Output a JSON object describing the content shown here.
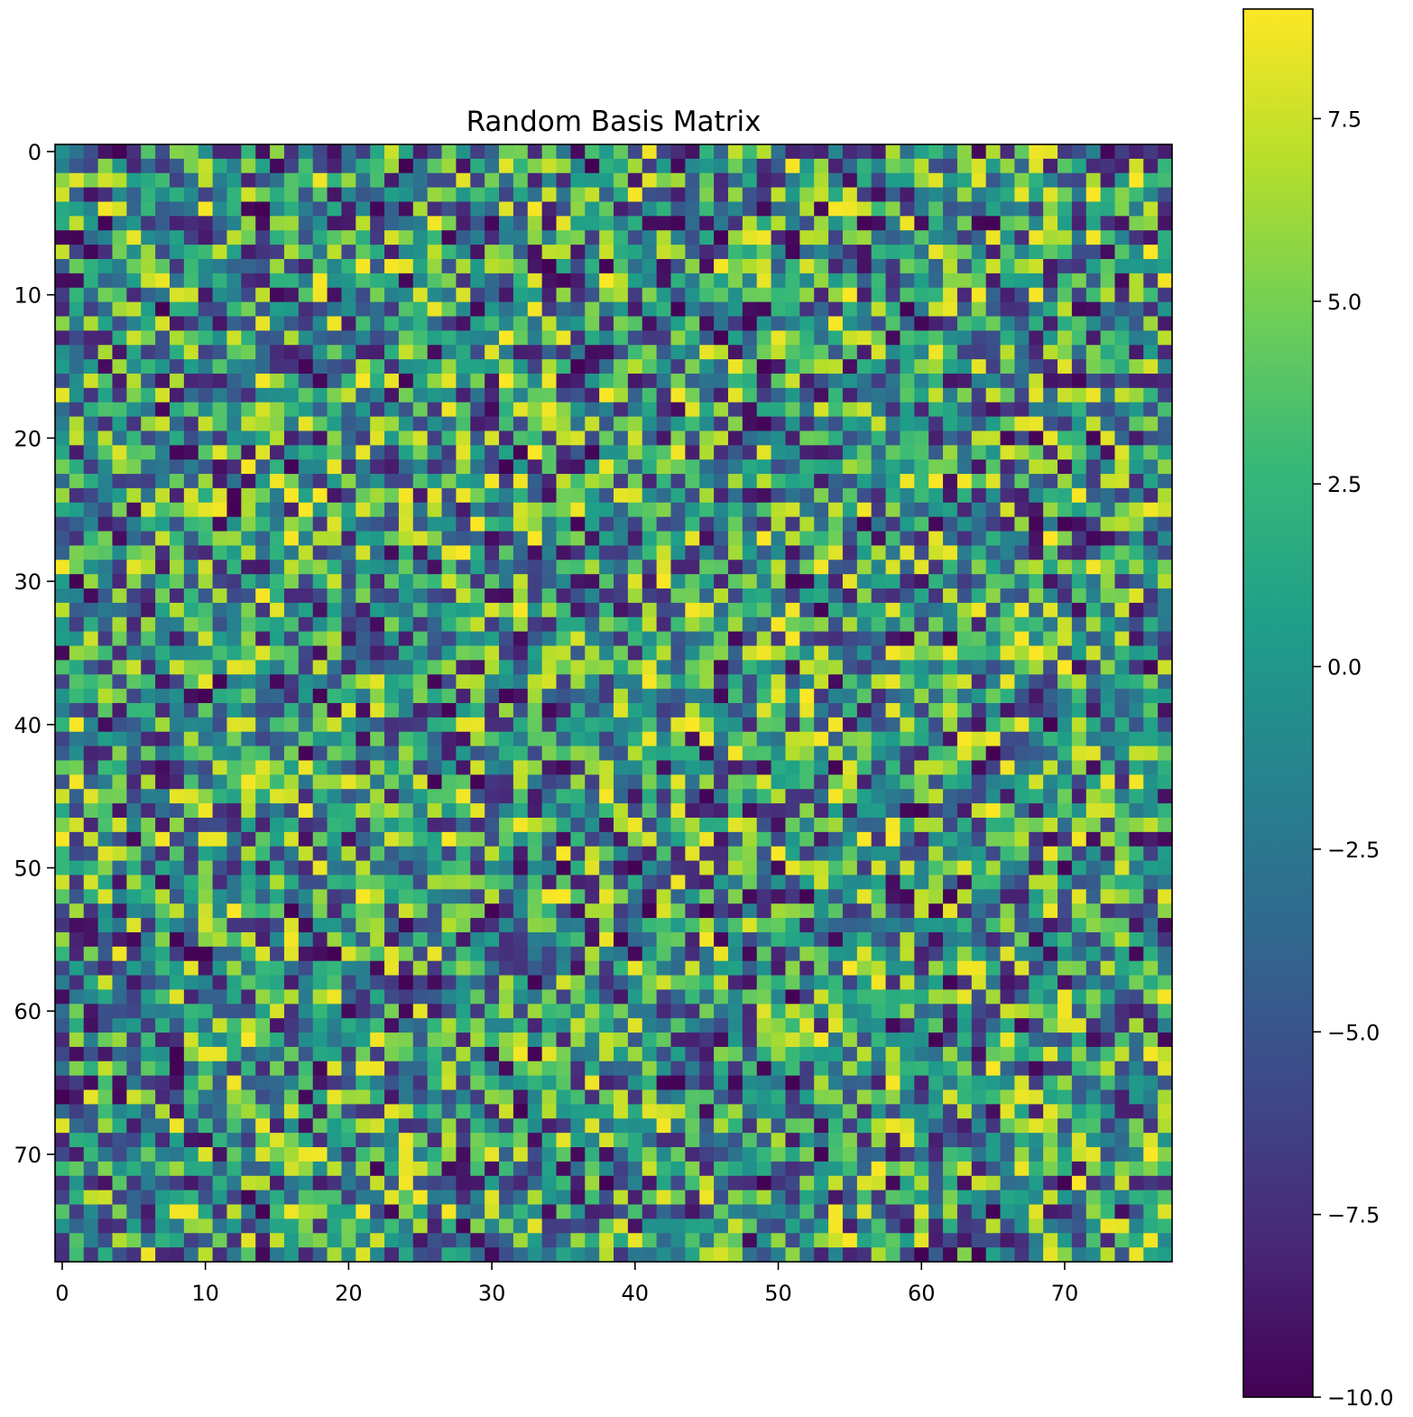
{
  "chart_data": {
    "type": "heatmap",
    "title": "Random Basis Matrix",
    "rows": 78,
    "cols": 78,
    "xlabel": "",
    "ylabel": "",
    "xticks": [
      0,
      10,
      20,
      30,
      40,
      50,
      60,
      70
    ],
    "yticks": [
      0,
      10,
      20,
      30,
      40,
      50,
      60,
      70
    ],
    "xtick_labels": [
      "0",
      "10",
      "20",
      "30",
      "40",
      "50",
      "60",
      "70"
    ],
    "ytick_labels": [
      "0",
      "10",
      "20",
      "30",
      "40",
      "50",
      "60",
      "70"
    ],
    "value_range": [
      -10.0,
      9.0
    ],
    "colormap": "viridis",
    "colorbar": {
      "ticks": [
        -10.0,
        -7.5,
        -5.0,
        -2.5,
        0.0,
        2.5,
        5.0,
        7.5
      ],
      "tick_labels": [
        "−10.0",
        "−7.5",
        "−5.0",
        "−2.5",
        "0.0",
        "2.5",
        "5.0",
        "7.5"
      ],
      "placement": "right"
    },
    "values_note_seed": 20240517,
    "grid": false
  },
  "colors": {
    "viridis_stops": [
      "#440154",
      "#482878",
      "#3e4989",
      "#31688e",
      "#26828e",
      "#1f9e89",
      "#35b779",
      "#6ece58",
      "#b5de2b",
      "#fde725"
    ]
  }
}
